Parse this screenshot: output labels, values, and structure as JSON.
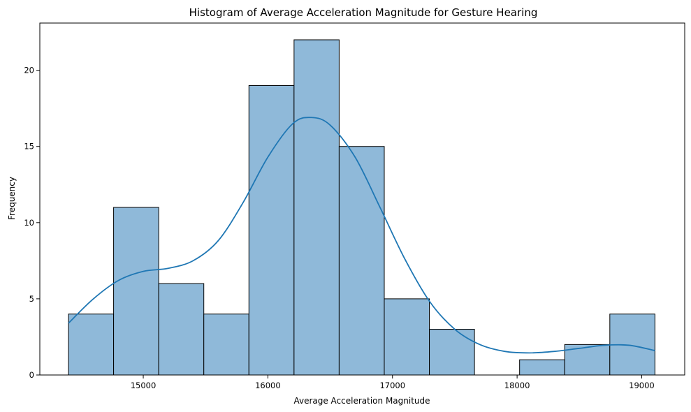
{
  "chart_data": {
    "type": "bar",
    "title": "Histogram of Average Acceleration Magnitude for Gesture Hearing",
    "xlabel": "Average Acceleration Magnitude",
    "ylabel": "Frequency",
    "xlim": [
      14170,
      19345
    ],
    "ylim": [
      0,
      23.1
    ],
    "grid": false,
    "bin_edges": [
      14400,
      14762,
      15124,
      15486,
      15848,
      16210,
      16572,
      16934,
      17296,
      17658,
      18020,
      18382,
      18744,
      19106
    ],
    "values": [
      4,
      11,
      6,
      4,
      19,
      22,
      15,
      5,
      3,
      0,
      1,
      2,
      4
    ],
    "bar_color": "#8fb9d9",
    "kde_color": "#1f77b4",
    "kde": {
      "x": [
        14400,
        14600,
        14800,
        15000,
        15200,
        15400,
        15600,
        15800,
        16000,
        16200,
        16350,
        16500,
        16700,
        16900,
        17100,
        17300,
        17500,
        17700,
        17900,
        18100,
        18300,
        18500,
        18700,
        18900,
        19106
      ],
      "y": [
        3.4,
        5.0,
        6.2,
        6.8,
        7.0,
        7.5,
        8.8,
        11.3,
        14.3,
        16.5,
        16.9,
        16.4,
        14.3,
        11.0,
        7.6,
        4.8,
        3.0,
        2.0,
        1.55,
        1.45,
        1.55,
        1.75,
        1.95,
        1.95,
        1.6
      ]
    },
    "xticks": [
      {
        "value": 15000,
        "label": "15000"
      },
      {
        "value": 16000,
        "label": "16000"
      },
      {
        "value": 17000,
        "label": "17000"
      },
      {
        "value": 18000,
        "label": "18000"
      },
      {
        "value": 19000,
        "label": "19000"
      }
    ],
    "yticks": [
      {
        "value": 0,
        "label": "0"
      },
      {
        "value": 5,
        "label": "5"
      },
      {
        "value": 10,
        "label": "10"
      },
      {
        "value": 15,
        "label": "15"
      },
      {
        "value": 20,
        "label": "20"
      }
    ]
  }
}
